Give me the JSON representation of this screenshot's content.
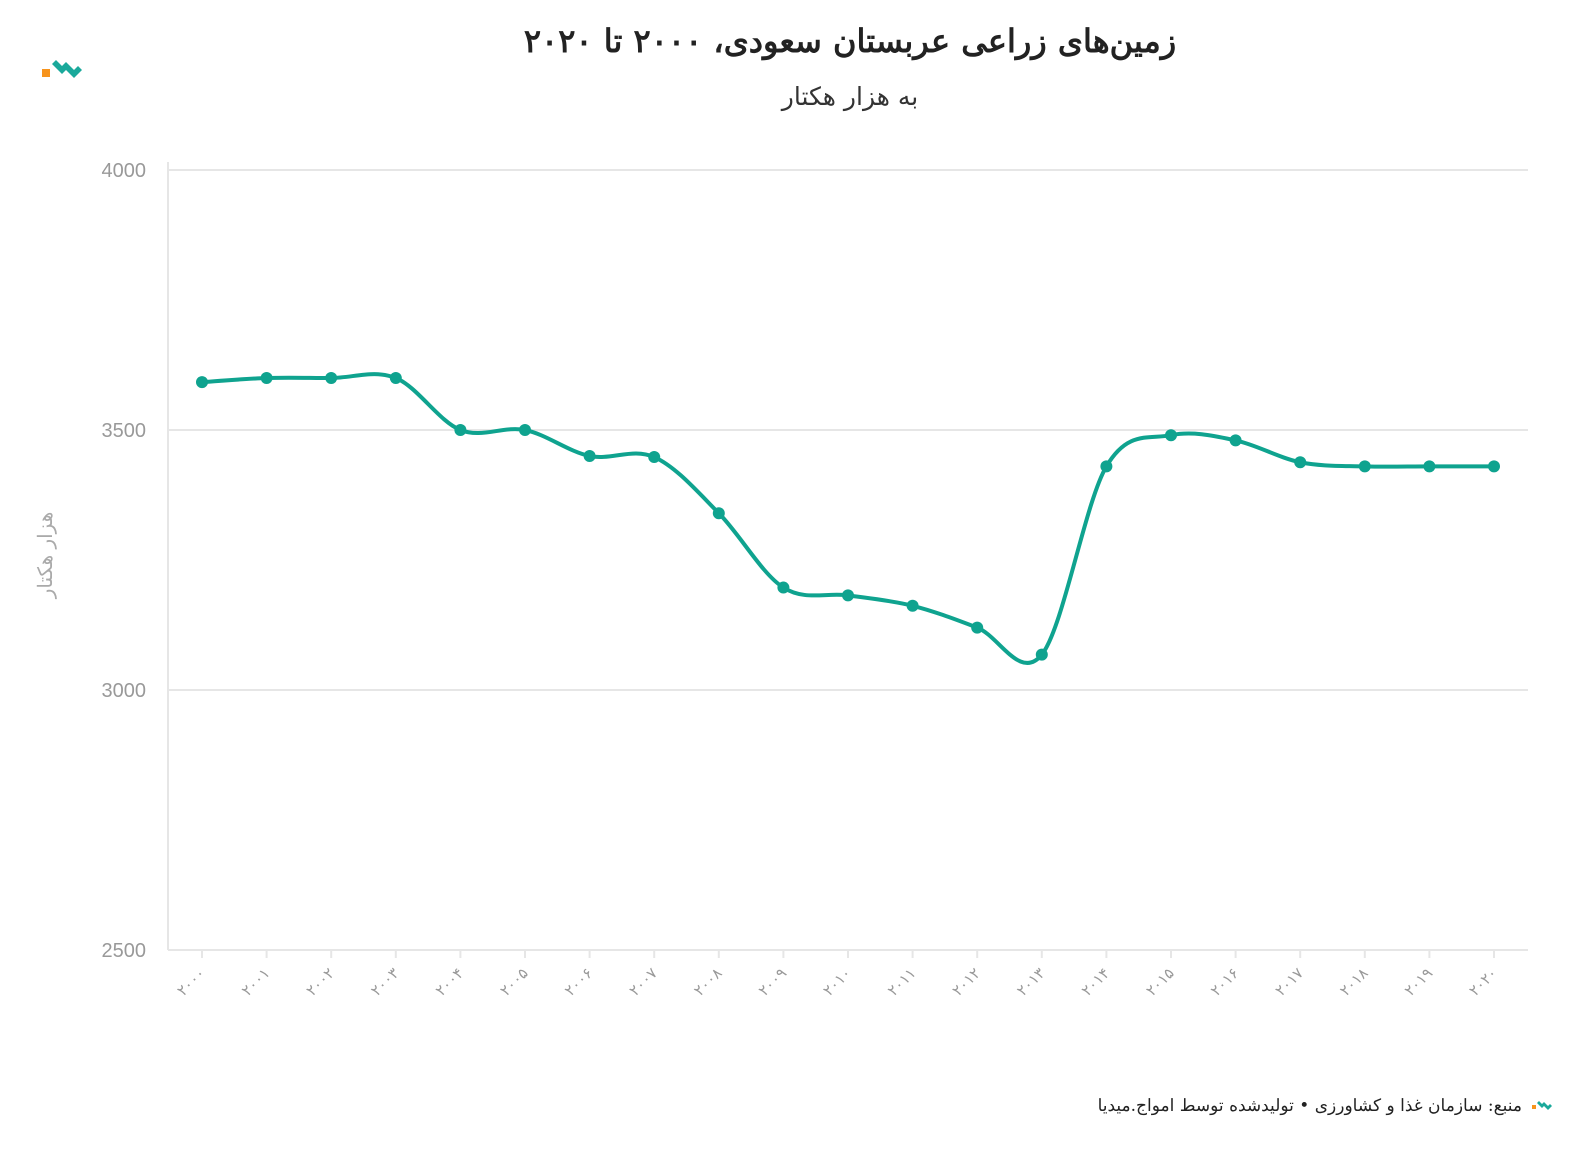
{
  "header": {
    "title": "زمین‌های زراعی عربستان سعودی، ۲۰۰۰ تا ۲۰۲۰",
    "subtitle": "به هزار هکتار"
  },
  "footer": {
    "source_text": "منبع: سازمان غذا و کشاورزی • تولیدشده توسط امواج.میدیا"
  },
  "colors": {
    "line": "#0fa38f",
    "logo_orange": "#f7941d",
    "logo_teal": "#1aa99b",
    "grid": "#e6e6e6",
    "axis_text": "#999999"
  },
  "chart_data": {
    "type": "line",
    "title": "زمین‌های زراعی عربستان سعودی، ۲۰۰۰ تا ۲۰۲۰",
    "subtitle": "به هزار هکتار",
    "ylabel": "هزار هکتار",
    "xlabel": "",
    "ylim": [
      2500,
      4000
    ],
    "yticks": [
      "4000",
      "3500",
      "3000",
      "2500"
    ],
    "categories": [
      "۲۰۰۰",
      "۲۰۰۱",
      "۲۰۰۲",
      "۲۰۰۳",
      "۲۰۰۴",
      "۲۰۰۵",
      "۲۰۰۶",
      "۲۰۰۷",
      "۲۰۰۸",
      "۲۰۰۹",
      "۲۰۱۰",
      "۲۰۱۱",
      "۲۰۱۲",
      "۲۰۱۳",
      "۲۰۱۴",
      "۲۰۱۵",
      "۲۰۱۶",
      "۲۰۱۷",
      "۲۰۱۸",
      "۲۰۱۹",
      "۲۰۲۰"
    ],
    "series": [
      {
        "values": [
          3592,
          3600,
          3600,
          3600,
          3500,
          3500,
          3450,
          3448,
          3340,
          3197,
          3182,
          3162,
          3120,
          3068,
          3430,
          3490,
          3480,
          3438,
          3430,
          3430,
          3430
        ]
      }
    ],
    "grid": true,
    "legend": "none"
  }
}
